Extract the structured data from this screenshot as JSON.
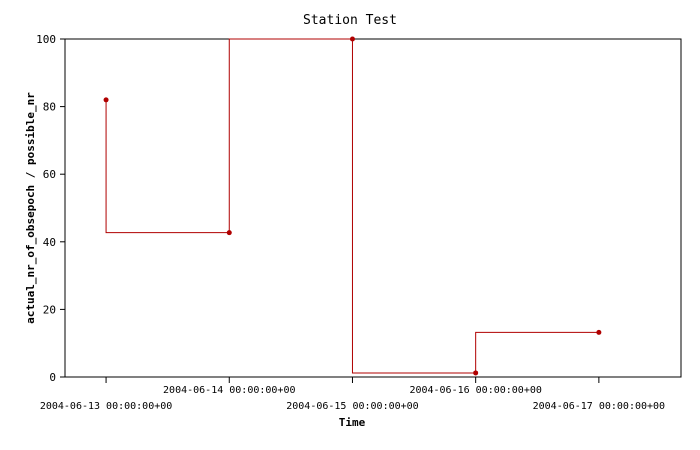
{
  "chart_data": {
    "type": "line",
    "step": "post",
    "title": "Station Test",
    "xlabel": "Time",
    "ylabel": "actual_nr_of_obsepoch / possible_nr",
    "ylim": [
      0,
      100
    ],
    "xlim": [
      "2004-06-12 16:00:00+00",
      "2004-06-17 16:00:00+00"
    ],
    "yticks": [
      0,
      20,
      40,
      60,
      80,
      100
    ],
    "xticks": [
      "2004-06-13 00:00:00+00",
      "2004-06-14 00:00:00+00",
      "2004-06-15 00:00:00+00",
      "2004-06-16 00:00:00+00",
      "2004-06-17 00:00:00+00"
    ],
    "grid": false,
    "legend": "none",
    "series_color": "#b00000",
    "series": [
      {
        "x": [
          "2004-06-13 00:00:00+00",
          "2004-06-14 00:00:00+00",
          "2004-06-15 00:00:00+00",
          "2004-06-16 00:00:00+00",
          "2004-06-17 00:00:00+00"
        ],
        "values": [
          82,
          42.7,
          100,
          1.2,
          13.2
        ]
      }
    ]
  }
}
